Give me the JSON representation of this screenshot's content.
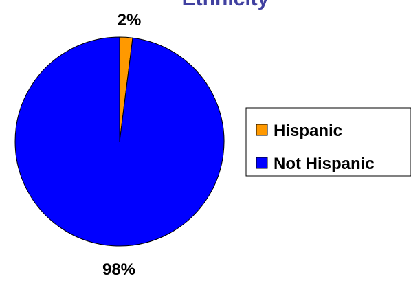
{
  "chart_data": {
    "type": "pie",
    "title": "Ethnicity",
    "title_color": "#4040a0",
    "categories": [
      "Hispanic",
      "Not Hispanic"
    ],
    "values": [
      2,
      98
    ],
    "labels": [
      "2%",
      "98%"
    ],
    "colors": [
      "#ff9900",
      "#0000ff"
    ],
    "legend_placement": "right"
  }
}
